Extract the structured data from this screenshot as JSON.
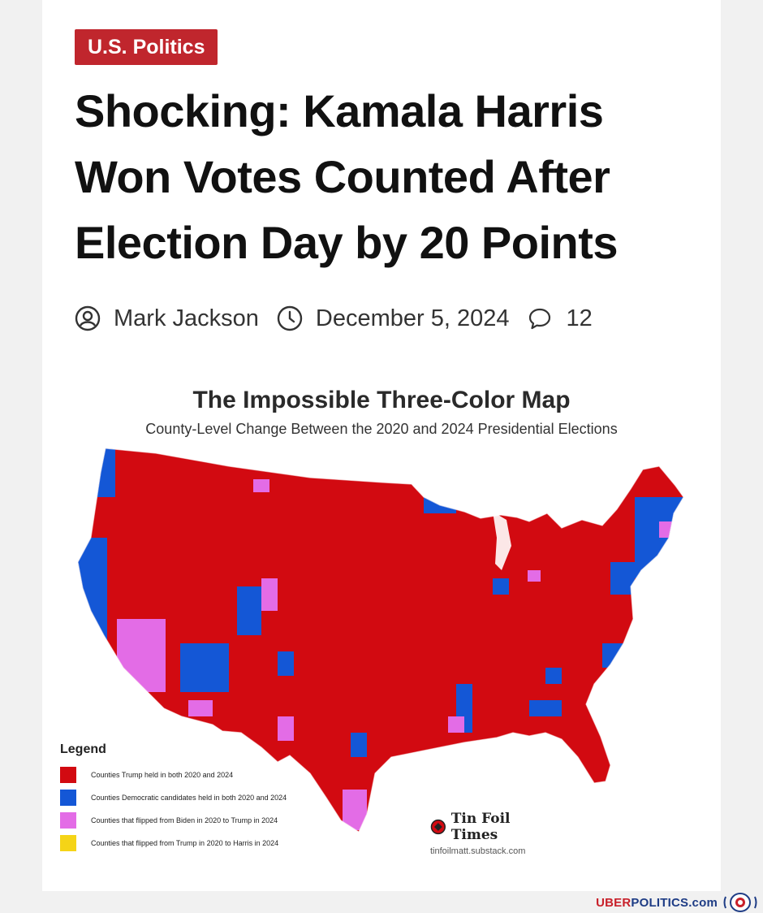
{
  "article": {
    "category": "U.S. Politics",
    "headline": "Shocking: Kamala Harris Won Votes Counted After Election Day by 20 Points",
    "author": "Mark Jackson",
    "date": "December 5, 2024",
    "comments": "12"
  },
  "map": {
    "title": "The Impossible Three-Color Map",
    "subtitle": "County-Level Change Between the 2020 and 2024 Presidential Elections",
    "legend_title": "Legend",
    "legend": [
      {
        "label": "Counties Trump held in both 2020 and 2024",
        "color": "#d20a11"
      },
      {
        "label": "Counties Democratic candidates held in both 2020 and 2024",
        "color": "#1457d6"
      },
      {
        "label": "Counties that flipped from Biden in 2020 to Trump in 2024",
        "color": "#e36ce6"
      },
      {
        "label": "Counties that flipped from Trump in 2020 to Harris in 2024",
        "color": "#f5d417"
      }
    ],
    "brand_name": "Tin Foil Times",
    "brand_url": "tinfoilmatt.substack.com"
  },
  "watermark": {
    "part1": "UBER",
    "part2": "POLITICS",
    "part3": ".com"
  },
  "colors": {
    "category_bg": "#c0262d",
    "trump_red": "#d20a11",
    "dem_blue": "#1457d6",
    "flip_pink": "#e36ce6",
    "flip_yellow": "#f5d417"
  },
  "icons": [
    "user-circle-icon",
    "clock-icon",
    "comment-icon"
  ]
}
